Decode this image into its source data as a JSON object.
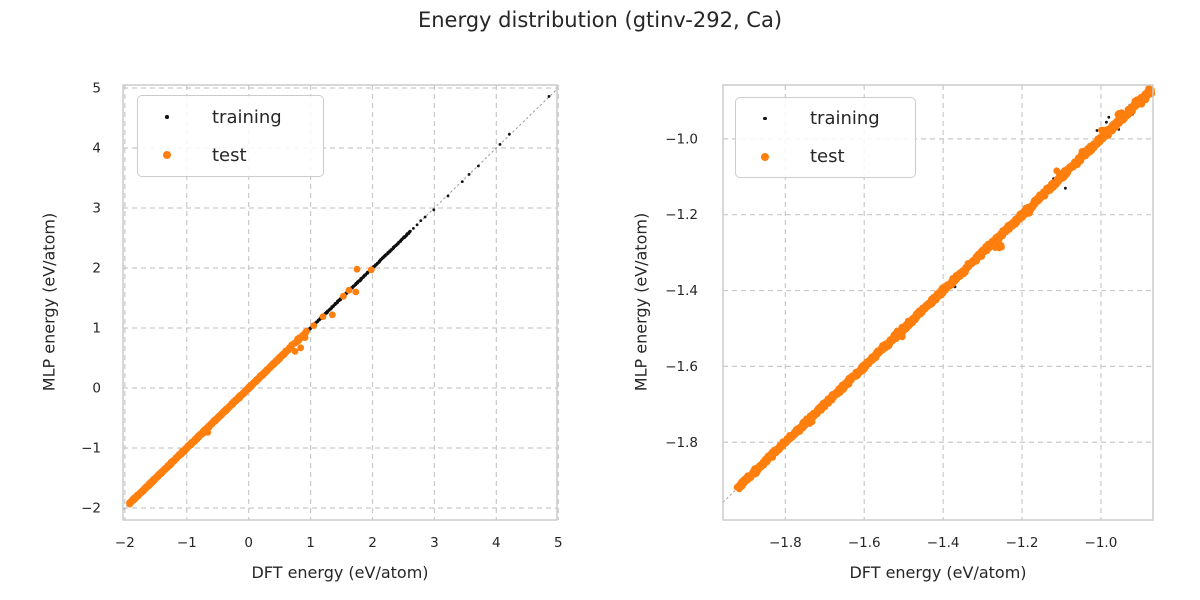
{
  "title": "Energy distribution (gtinv-292, Ca)",
  "theme": {
    "background": "#ffffff",
    "grid_color": "#c9c9c9",
    "spine_color": "#cccccc",
    "identity_line_color": "#8f8f8f",
    "text_color": "#262626",
    "training_color": "#111111",
    "test_color": "#ff7f0e"
  },
  "chart_data": [
    {
      "type": "scatter",
      "panel": "left",
      "xlabel": "DFT energy (eV/atom)",
      "ylabel": "MLP energy (eV/atom)",
      "xlim": [
        -2.03,
        4.98
      ],
      "ylim": [
        -2.2,
        5.05
      ],
      "xticks": [
        -2,
        -1,
        0,
        1,
        2,
        3,
        4,
        5
      ],
      "xtick_labels": [
        "−2",
        "−1",
        "0",
        "1",
        "2",
        "3",
        "4",
        "5"
      ],
      "yticks": [
        -2,
        -1,
        0,
        1,
        2,
        3,
        4,
        5
      ],
      "ytick_labels": [
        "−2",
        "−1",
        "0",
        "1",
        "2",
        "3",
        "4",
        "5"
      ],
      "grid": {
        "visible": true,
        "style": "dashed"
      },
      "identity_line": true,
      "legend": {
        "position": "upper-left",
        "entries": [
          "training",
          "test"
        ]
      },
      "series": [
        {
          "name": "training",
          "color": "#111111",
          "marker_radius": 1.4,
          "band": [
            {
              "from": -1.93,
              "to": 2.62,
              "n": 900,
              "jitter": 0.008
            }
          ],
          "points": [
            [
              2.66,
              2.66
            ],
            [
              2.72,
              2.72
            ],
            [
              2.78,
              2.79
            ],
            [
              2.85,
              2.85
            ],
            [
              2.99,
              2.97
            ],
            [
              3.22,
              3.2
            ],
            [
              3.45,
              3.44
            ],
            [
              3.56,
              3.56
            ],
            [
              3.71,
              3.7
            ],
            [
              4.06,
              4.06
            ],
            [
              4.21,
              4.23
            ],
            [
              4.85,
              4.86
            ]
          ]
        },
        {
          "name": "test",
          "color": "#ff7f0e",
          "marker_radius": 3.4,
          "band": [
            {
              "from": -1.93,
              "to": 0.58,
              "n": 650,
              "jitter": 0.01
            },
            {
              "from": 0.58,
              "to": 0.95,
              "n": 22,
              "jitter": 0.018
            }
          ],
          "points": [
            [
              -0.66,
              -0.74
            ],
            [
              0.75,
              0.61
            ],
            [
              0.84,
              0.67
            ],
            [
              0.81,
              0.79
            ],
            [
              0.91,
              0.84
            ],
            [
              0.93,
              0.94
            ],
            [
              1.05,
              1.04
            ],
            [
              1.2,
              1.19
            ],
            [
              1.35,
              1.22
            ],
            [
              1.53,
              1.53
            ],
            [
              1.62,
              1.63
            ],
            [
              1.73,
              1.6
            ],
            [
              1.75,
              1.98
            ],
            [
              1.98,
              1.97
            ]
          ]
        }
      ]
    },
    {
      "type": "scatter",
      "panel": "right",
      "xlabel": "DFT energy (eV/atom)",
      "ylabel": "MLP energy (eV/atom)",
      "xlim": [
        -1.958,
        -0.868
      ],
      "ylim": [
        -2.005,
        -0.858
      ],
      "xticks": [
        -1.8,
        -1.6,
        -1.4,
        -1.2,
        -1.0
      ],
      "xtick_labels": [
        "−1.8",
        "−1.6",
        "−1.4",
        "−1.2",
        "−1.0"
      ],
      "yticks": [
        -1.0,
        -1.2,
        -1.4,
        -1.6,
        -1.8
      ],
      "ytick_labels": [
        "−1.0",
        "−1.2",
        "−1.4",
        "−1.6",
        "−1.8"
      ],
      "grid": {
        "visible": true,
        "style": "dashed"
      },
      "identity_line": true,
      "legend": {
        "position": "upper-left",
        "entries": [
          "training",
          "test"
        ]
      },
      "series": [
        {
          "name": "training",
          "color": "#111111",
          "marker_radius": 1.4,
          "band": [
            {
              "from": -1.92,
              "to": -0.872,
              "n": 420,
              "jitter": 0.006
            }
          ],
          "points": [
            [
              -1.09,
              -1.13
            ],
            [
              -1.01,
              -0.978
            ],
            [
              -0.98,
              -0.943
            ],
            [
              -0.986,
              -0.956
            ],
            [
              -0.927,
              -0.912
            ],
            [
              -0.889,
              -0.882
            ],
            [
              -1.187,
              -1.176
            ],
            [
              -1.28,
              -1.27
            ],
            [
              -1.37,
              -1.39
            ],
            [
              -1.52,
              -1.505
            ],
            [
              -1.24,
              -1.235
            ],
            [
              -0.955,
              -0.975
            ],
            [
              -1.06,
              -1.05
            ],
            [
              -0.92,
              -0.935
            ],
            [
              -1.12,
              -1.105
            ],
            [
              -1.155,
              -1.148
            ],
            [
              -0.9,
              -0.89
            ],
            [
              -0.94,
              -0.952
            ],
            [
              -1.03,
              -1.02
            ]
          ]
        },
        {
          "name": "test",
          "color": "#ff7f0e",
          "marker_radius": 3.4,
          "band": [
            {
              "from": -1.92,
              "to": -0.875,
              "n": 1600,
              "jitter": 0.0045
            }
          ],
          "clusters": [
            {
              "x": -1.74,
              "y": -1.745,
              "n": 5,
              "spread": 0.008
            },
            {
              "x": -1.51,
              "y": -1.515,
              "n": 8,
              "spread": 0.012
            },
            {
              "x": -1.26,
              "y": -1.285,
              "n": 6,
              "spread": 0.009
            },
            {
              "x": -1.185,
              "y": -1.19,
              "n": 7,
              "spread": 0.012
            },
            {
              "x": -1.1,
              "y": -1.093,
              "n": 9,
              "spread": 0.013
            },
            {
              "x": -1.04,
              "y": -1.035,
              "n": 7,
              "spread": 0.012
            },
            {
              "x": -0.99,
              "y": -0.985,
              "n": 9,
              "spread": 0.013
            },
            {
              "x": -0.947,
              "y": -0.94,
              "n": 10,
              "spread": 0.013
            },
            {
              "x": -0.9,
              "y": -0.9,
              "n": 14,
              "spread": 0.014
            },
            {
              "x": -0.88,
              "y": -0.875,
              "n": 12,
              "spread": 0.01
            }
          ]
        }
      ]
    }
  ]
}
